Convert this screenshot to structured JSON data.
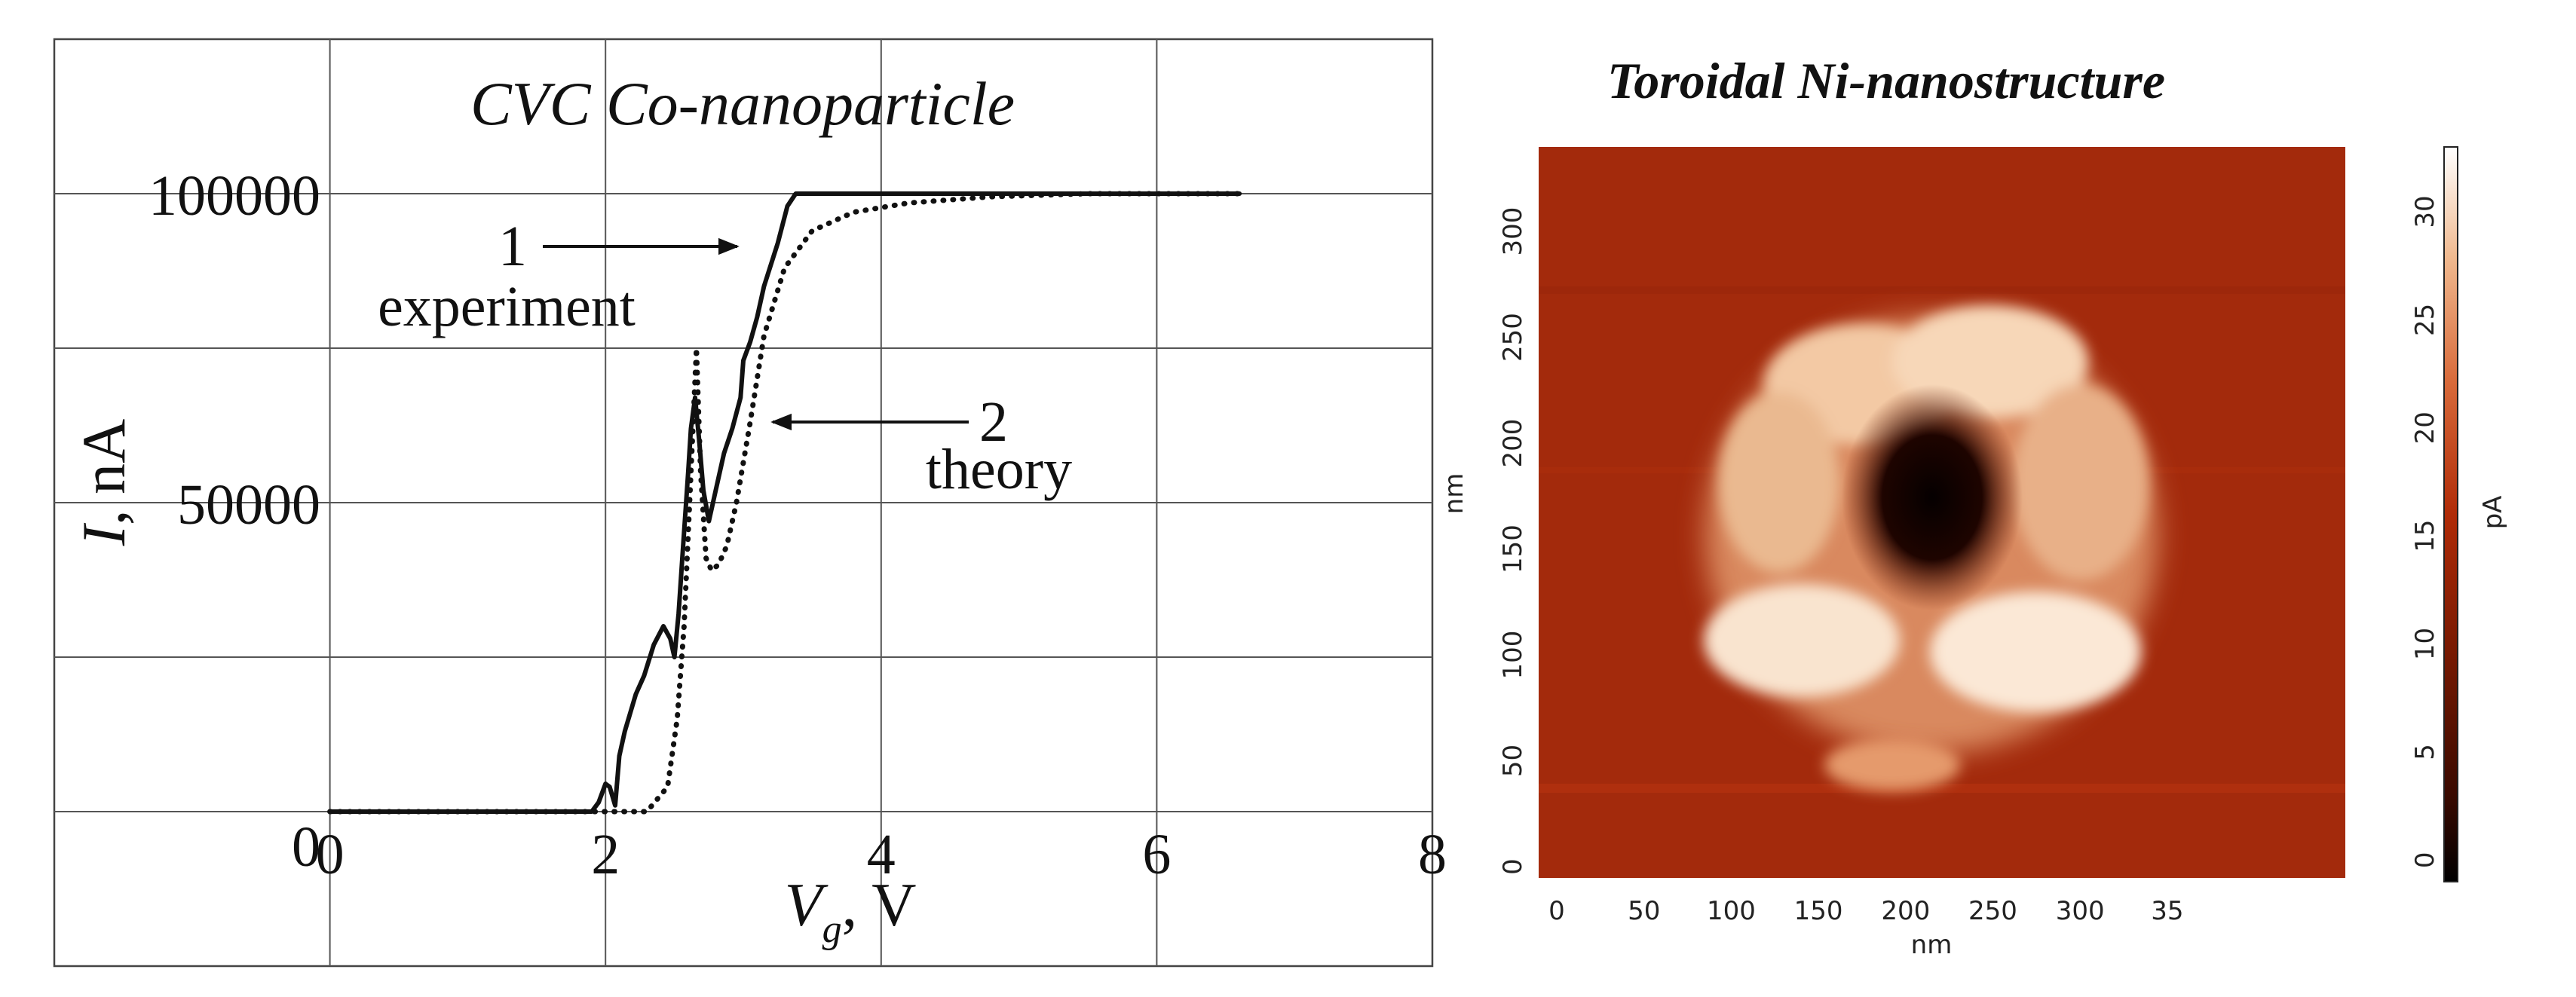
{
  "chart_data": [
    {
      "type": "line",
      "title": "CVC Co-nanoparticle",
      "xlabel": "V",
      "xlabel_subscript": "g",
      "xlabel_unit": "V",
      "ylabel": "I",
      "ylabel_unit": "nA",
      "xlim": [
        -2,
        8
      ],
      "ylim": [
        -25000,
        125000
      ],
      "grid": true,
      "x_ticks": [
        "0",
        "2",
        "4",
        "6",
        "8"
      ],
      "y_ticks": [
        "0",
        "50000",
        "100000"
      ],
      "series": [
        {
          "name": "experiment",
          "label_number": "1",
          "style": "solid",
          "color": "#111111",
          "x": [
            0,
            1.9,
            1.95,
            2.0,
            2.03,
            2.07,
            2.1,
            2.14,
            2.18,
            2.22,
            2.28,
            2.35,
            2.42,
            2.47,
            2.5,
            2.53,
            2.56,
            2.6,
            2.62,
            2.65,
            2.68,
            2.71,
            2.75,
            2.8,
            2.86,
            2.92,
            2.98,
            3.0,
            3.05,
            3.1,
            3.15,
            3.25,
            3.32,
            3.38,
            4,
            5,
            6,
            6.6
          ],
          "y": [
            0,
            0,
            1500,
            4500,
            4000,
            1000,
            9000,
            13000,
            16000,
            19000,
            22000,
            27000,
            30000,
            28000,
            25000,
            32000,
            42000,
            55000,
            62000,
            67000,
            60000,
            52000,
            47000,
            52000,
            58000,
            62000,
            67000,
            73000,
            76000,
            80000,
            85000,
            92000,
            98000,
            100000,
            100000,
            100000,
            100000,
            100000
          ]
        },
        {
          "name": "theory",
          "label_number": "2",
          "style": "dotted",
          "color": "#111111",
          "x": [
            0,
            1.9,
            2.1,
            2.3,
            2.45,
            2.52,
            2.57,
            2.6,
            2.63,
            2.66,
            2.69,
            2.73,
            2.77,
            2.82,
            2.88,
            2.95,
            3.05,
            3.15,
            3.3,
            3.5,
            3.8,
            4.2,
            4.8,
            5.5,
            6.6
          ],
          "y": [
            0,
            0,
            0,
            0,
            4000,
            15000,
            30000,
            45000,
            60000,
            75000,
            55000,
            41000,
            39000,
            40000,
            43000,
            50000,
            63000,
            77000,
            88000,
            94000,
            97000,
            98500,
            99500,
            100000,
            100000
          ]
        }
      ],
      "annotations": [
        {
          "number": "1",
          "text": "experiment"
        },
        {
          "number": "2",
          "text": "theory"
        }
      ]
    },
    {
      "type": "heatmap",
      "title": "Toroidal Ni-nanostructure",
      "xlabel": "nm",
      "ylabel": "nm",
      "x_ticks": [
        "0",
        "50",
        "100",
        "150",
        "200",
        "250",
        "300",
        "35"
      ],
      "y_ticks": [
        "0",
        "50",
        "100",
        "150",
        "200",
        "250",
        "300"
      ],
      "colorbar": {
        "label": "pA",
        "ticks": [
          "0",
          "5",
          "10",
          "15",
          "20",
          "25",
          "30"
        ],
        "range": [
          -1,
          33
        ],
        "colormap": [
          "#000000",
          "#3b0a00",
          "#7a1a02",
          "#b02b07",
          "#d86a3a",
          "#f0b98f",
          "#ffffff"
        ]
      },
      "background_color": "#a32a0c"
    }
  ]
}
